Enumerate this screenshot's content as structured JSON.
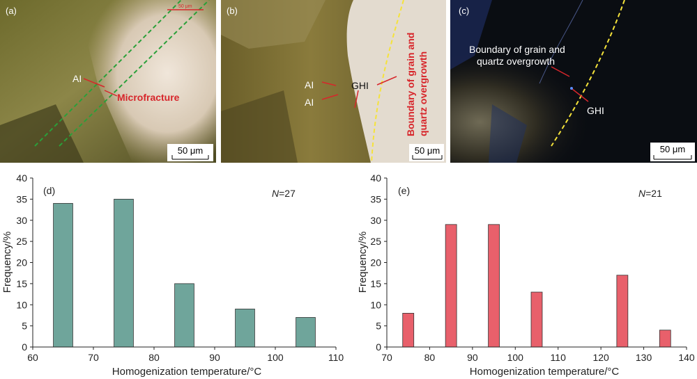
{
  "micrographs": {
    "a": {
      "panel_label": "(a)",
      "labels": [
        "AI",
        "Microfracture"
      ],
      "red_scale": "50 μm",
      "scale_bar": "50 μm"
    },
    "b": {
      "panel_label": "(b)",
      "labels": [
        "AI",
        "AI",
        "GHI",
        "Boundary of grain and",
        "quartz overgrowth"
      ],
      "scale_bar": "50 μm"
    },
    "c": {
      "panel_label": "(c)",
      "labels": [
        "Boundary of grain and",
        "quartz overgrowth",
        "GHI"
      ],
      "scale_bar": "50 μm"
    }
  },
  "colors": {
    "series_d": "#6fa59b",
    "series_e": "#e8606b",
    "annotation_red": "#d7262b",
    "boundary_yellow": "#f5e33a",
    "fracture_green": "#2aa03a"
  },
  "chart_data": [
    {
      "type": "bar",
      "panel_label": "(d)",
      "annotation_prefix": "N",
      "annotation_value": "=27",
      "xlabel": "Homogenization temperature/°C",
      "ylabel": "Frequency/%",
      "xlim": [
        60,
        110
      ],
      "ylim": [
        0,
        40
      ],
      "xticks": [
        60,
        70,
        80,
        90,
        100,
        110
      ],
      "yticks": [
        0,
        5,
        10,
        15,
        20,
        25,
        30,
        35,
        40
      ],
      "bin_width": 3.2,
      "x": [
        65,
        75,
        85,
        95,
        105
      ],
      "values": [
        34,
        35,
        15,
        9,
        7
      ]
    },
    {
      "type": "bar",
      "panel_label": "(e)",
      "annotation_prefix": "N",
      "annotation_value": "=21",
      "xlabel": "Homogenization temperature/°C",
      "ylabel": "Frequency/%",
      "xlim": [
        70,
        140
      ],
      "ylim": [
        0,
        40
      ],
      "xticks": [
        70,
        80,
        90,
        100,
        110,
        120,
        130,
        140
      ],
      "yticks": [
        0,
        5,
        10,
        15,
        20,
        25,
        30,
        35,
        40
      ],
      "bin_width": 2.6,
      "x": [
        75,
        85,
        95,
        105,
        125,
        135
      ],
      "values": [
        8,
        29,
        29,
        13,
        17,
        4
      ]
    }
  ]
}
